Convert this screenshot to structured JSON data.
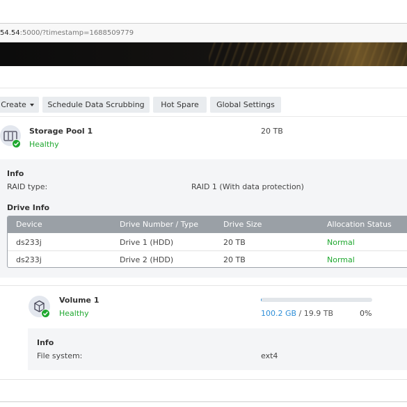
{
  "address_bar": {
    "host": "54.54",
    "rest": ":5000/?timestamp=1688509779"
  },
  "toolbar": {
    "create_label": "Create",
    "schedule_label": "Schedule Data Scrubbing",
    "hot_spare_label": "Hot Spare",
    "global_settings_label": "Global Settings"
  },
  "pool": {
    "name": "Storage Pool 1",
    "status": "Healthy",
    "size": "20 TB",
    "info_title": "Info",
    "raid_label": "RAID type:",
    "raid_value": "RAID 1 (With data protection)",
    "drive_info_title": "Drive Info",
    "columns": [
      "Device",
      "Drive Number / Type",
      "Drive Size",
      "Allocation Status"
    ],
    "drives": [
      {
        "device": "ds233j",
        "number": "Drive 1 (HDD)",
        "size": "20 TB",
        "status": "Normal"
      },
      {
        "device": "ds233j",
        "number": "Drive 2 (HDD)",
        "size": "20 TB",
        "status": "Normal"
      }
    ]
  },
  "volume": {
    "name": "Volume 1",
    "status": "Healthy",
    "used": "100.2 GB",
    "separator": " / ",
    "total": "19.9 TB",
    "percent": "0%",
    "usage_fraction": 0.005,
    "info_title": "Info",
    "fs_label": "File system:",
    "fs_value": "ext4"
  },
  "colors": {
    "healthy": "#1fa82f",
    "accent": "#2d8ed8",
    "table_header": "#9aa0a6"
  }
}
